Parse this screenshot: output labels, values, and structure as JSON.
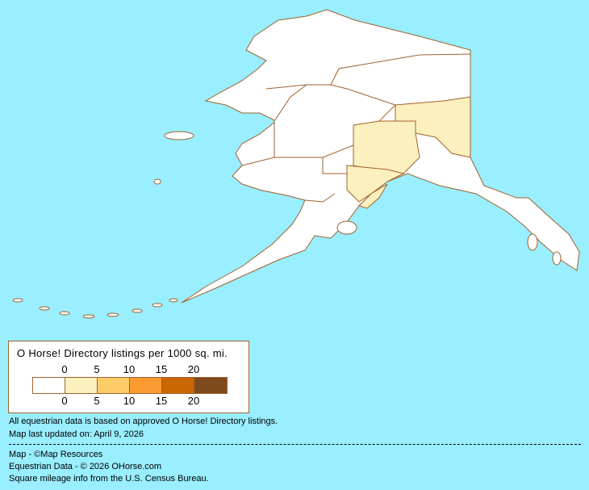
{
  "map": {
    "region": "Alaska",
    "colors": {
      "ocean": "#99EEFF",
      "land": "#FFFFFF",
      "border": "#A0622D",
      "low": "#FCF0BE"
    }
  },
  "legend": {
    "title": "O Horse! Directory listings per 1000 sq. mi.",
    "top_labels": [
      "0",
      "5",
      "10",
      "15",
      "20"
    ],
    "bottom_labels": [
      "0",
      "5",
      "10",
      "15",
      "20"
    ],
    "colors": [
      "#FFFFFF",
      "#FCF0BE",
      "#FDCC66",
      "#FC9A33",
      "#CC6600",
      "#7F4A1E"
    ]
  },
  "notes": {
    "data_basis": "All equestrian data is based on approved O Horse! Directory listings.",
    "updated": "Map last updated on: April 9, 2026"
  },
  "credits": {
    "map": "Map - ©Map Resources",
    "data": "Equestrian Data - © 2026 OHorse.com",
    "mileage": "Square mileage info from the U.S. Census Bureau."
  }
}
